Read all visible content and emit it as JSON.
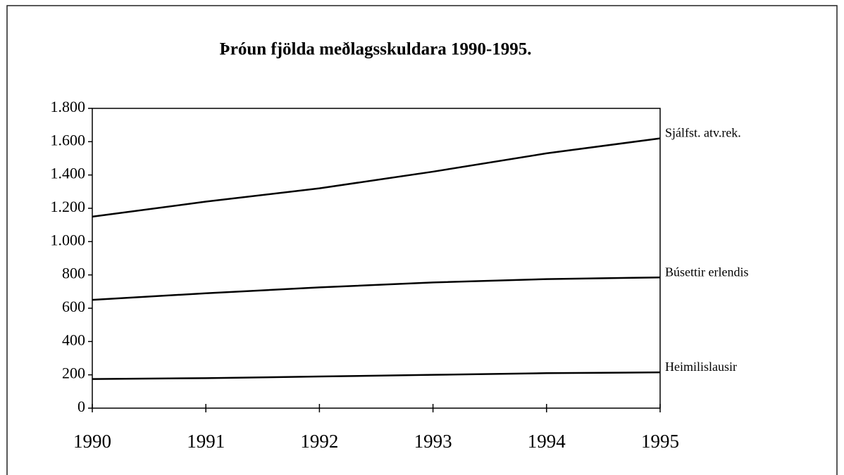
{
  "chart_data": {
    "type": "line",
    "title": "Þróun fjölda meðlagsskuldara 1990-1995.",
    "x": [
      1990,
      1991,
      1992,
      1993,
      1994,
      1995
    ],
    "series": [
      {
        "name": "Sjálfst. atv.rek.",
        "color": "#000000",
        "values": [
          1150,
          1240,
          1320,
          1420,
          1530,
          1620
        ]
      },
      {
        "name": "Búsettir erlendis",
        "color": "#000000",
        "values": [
          650,
          690,
          725,
          755,
          775,
          785
        ]
      },
      {
        "name": "Heimilislausir",
        "color": "#000000",
        "values": [
          175,
          180,
          190,
          200,
          210,
          215
        ]
      }
    ],
    "xlim": [
      1990,
      1995
    ],
    "xticks": [
      1990,
      1991,
      1992,
      1993,
      1994,
      1995
    ],
    "ylim": [
      0,
      1800
    ],
    "yticks": [
      0,
      200,
      400,
      600,
      800,
      {
        "value": 1000,
        "label": "1.000"
      },
      {
        "value": 1200,
        "label": "1.200"
      },
      {
        "value": 1400,
        "label": "1.400"
      },
      {
        "value": 1600,
        "label": "1.600"
      },
      {
        "value": 1800,
        "label": "1.800"
      }
    ],
    "grid": false
  }
}
